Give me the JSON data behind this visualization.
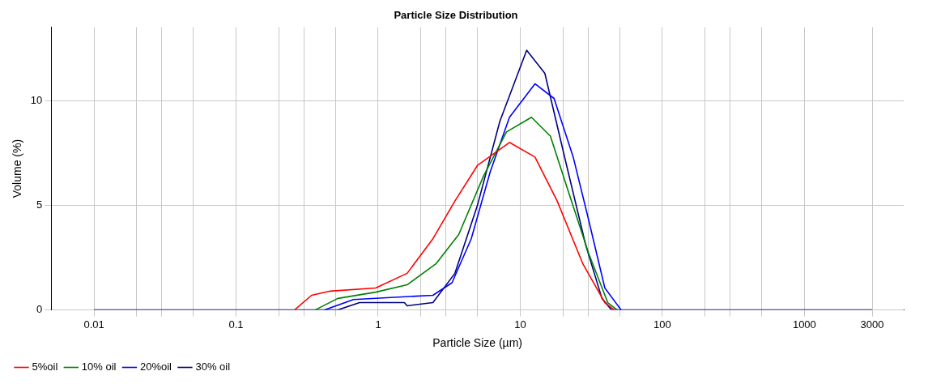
{
  "chart_data": {
    "type": "line",
    "title": "Particle Size Distribution",
    "xlabel": "Particle Size (µm)",
    "ylabel": "Volume (%)",
    "log": "x",
    "grid": true,
    "legend": "bottom left",
    "marker": "none",
    "line_style": "solid",
    "xlim": [
      0.005,
      5000
    ],
    "ylim": [
      0,
      13.5
    ],
    "yticks": [
      0,
      5,
      10
    ],
    "xticks": [
      0.01,
      {
        "value": 0.02,
        "label": null
      },
      {
        "value": 0.03,
        "label": null
      },
      {
        "value": 0.05,
        "label": null
      },
      0.1,
      {
        "value": 0.2,
        "label": null
      },
      {
        "value": 0.3,
        "label": null
      },
      {
        "value": 0.5,
        "label": null
      },
      1,
      {
        "value": 2,
        "label": null
      },
      {
        "value": 3,
        "label": null
      },
      {
        "value": 5,
        "label": null
      },
      10,
      {
        "value": 20,
        "label": null
      },
      {
        "value": 30,
        "label": null
      },
      {
        "value": 50,
        "label": null
      },
      100,
      {
        "value": 200,
        "label": null
      },
      {
        "value": 300,
        "label": null
      },
      {
        "value": 500,
        "label": null
      },
      1000,
      3000
    ],
    "series": [
      {
        "name": "5%oil",
        "color": "#ff0000",
        "x": [
          0.258,
          0.34,
          0.46,
          0.96,
          1.6,
          2.43,
          3.47,
          5.0,
          8.4,
          12.7,
          18.2,
          27.6,
          39.4,
          46
        ],
        "values": [
          0,
          0.7,
          0.9,
          1.05,
          1.75,
          3.4,
          5.2,
          6.9,
          8.0,
          7.3,
          5.2,
          2.2,
          0.35,
          0
        ]
      },
      {
        "name": "10% oil",
        "color": "#008000",
        "x": [
          0.36,
          0.52,
          0.96,
          1.6,
          2.55,
          3.69,
          5.52,
          8.0,
          12.0,
          16.3,
          22.2,
          30.3,
          41.3,
          48.2
        ],
        "values": [
          0,
          0.55,
          0.85,
          1.2,
          2.2,
          3.6,
          6.4,
          8.5,
          9.2,
          8.3,
          5.5,
          2.7,
          0.35,
          0
        ]
      },
      {
        "name": "20%oil",
        "color": "#0000ff",
        "x": [
          0.42,
          0.67,
          2.43,
          3.31,
          4.52,
          6.15,
          8.4,
          12.7,
          17.3,
          23.6,
          30.3,
          39.4,
          51.3
        ],
        "values": [
          0,
          0.5,
          0.7,
          1.3,
          3.4,
          6.6,
          9.2,
          10.8,
          10.1,
          7.3,
          4.3,
          1.05,
          0
        ]
      },
      {
        "name": "30% oil",
        "color": "#000080",
        "x": [
          0.01,
          0.52,
          0.74,
          1.53,
          1.6,
          2.43,
          3.47,
          5.0,
          7.18,
          11.1,
          14.9,
          21.2,
          28.9,
          37.6,
          43.9,
          3000
        ],
        "values": [
          0,
          0,
          0.35,
          0.35,
          0.2,
          0.35,
          1.75,
          5.0,
          9.0,
          12.4,
          11.3,
          6.9,
          3.1,
          0.55,
          0,
          0
        ]
      }
    ]
  }
}
